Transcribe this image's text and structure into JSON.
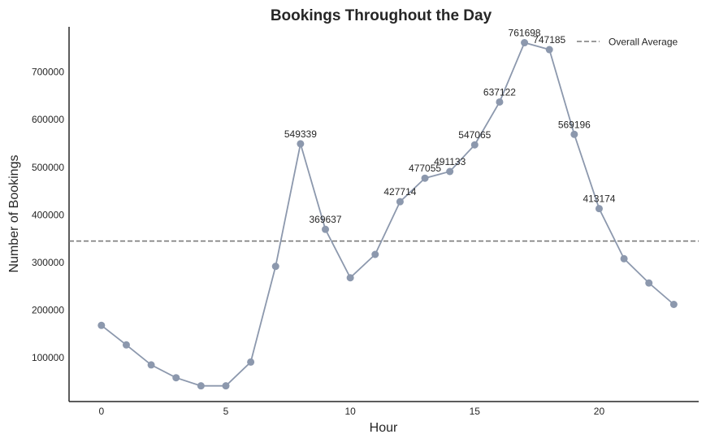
{
  "colors": {
    "line": "#8c98ad",
    "marker": "#8c98ad",
    "average": "#7a7a7a",
    "axis": "#262626"
  },
  "chart_data": {
    "type": "line",
    "title": "Bookings Throughout the Day",
    "xlabel": "Hour",
    "ylabel": "Number of Bookings",
    "xlim": [
      -1.3,
      24.0
    ],
    "ylim": [
      8000,
      795000
    ],
    "xticks": [
      0,
      5,
      10,
      15,
      20
    ],
    "yticks": [
      100000,
      200000,
      300000,
      400000,
      500000,
      600000,
      700000
    ],
    "grid": false,
    "legend_placement": "top-right",
    "x": [
      0,
      1,
      2,
      3,
      4,
      5,
      6,
      7,
      8,
      9,
      10,
      11,
      12,
      13,
      14,
      15,
      16,
      17,
      18,
      19,
      20,
      21,
      22,
      23
    ],
    "series": [
      {
        "values": [
          168000,
          127000,
          85000,
          58000,
          41000,
          41000,
          91000,
          292000,
          549339,
          369637,
          268000,
          317000,
          427714,
          477055,
          491133,
          547065,
          637122,
          761698,
          747185,
          569196,
          413174,
          308000,
          257000,
          212000
        ]
      }
    ],
    "data_labels": [
      {
        "x": 8,
        "y": 549339,
        "text": "549339"
      },
      {
        "x": 9,
        "y": 369637,
        "text": "369637"
      },
      {
        "x": 12,
        "y": 427714,
        "text": "427714"
      },
      {
        "x": 13,
        "y": 477055,
        "text": "477055"
      },
      {
        "x": 14,
        "y": 491133,
        "text": "491133"
      },
      {
        "x": 15,
        "y": 547065,
        "text": "547065"
      },
      {
        "x": 16,
        "y": 637122,
        "text": "637122"
      },
      {
        "x": 17,
        "y": 761698,
        "text": "761698"
      },
      {
        "x": 18,
        "y": 747185,
        "text": "747185"
      },
      {
        "x": 19,
        "y": 569196,
        "text": "569196"
      },
      {
        "x": 20,
        "y": 413174,
        "text": "413174"
      }
    ],
    "average": {
      "label": "Overall Average",
      "value": 345000
    }
  }
}
